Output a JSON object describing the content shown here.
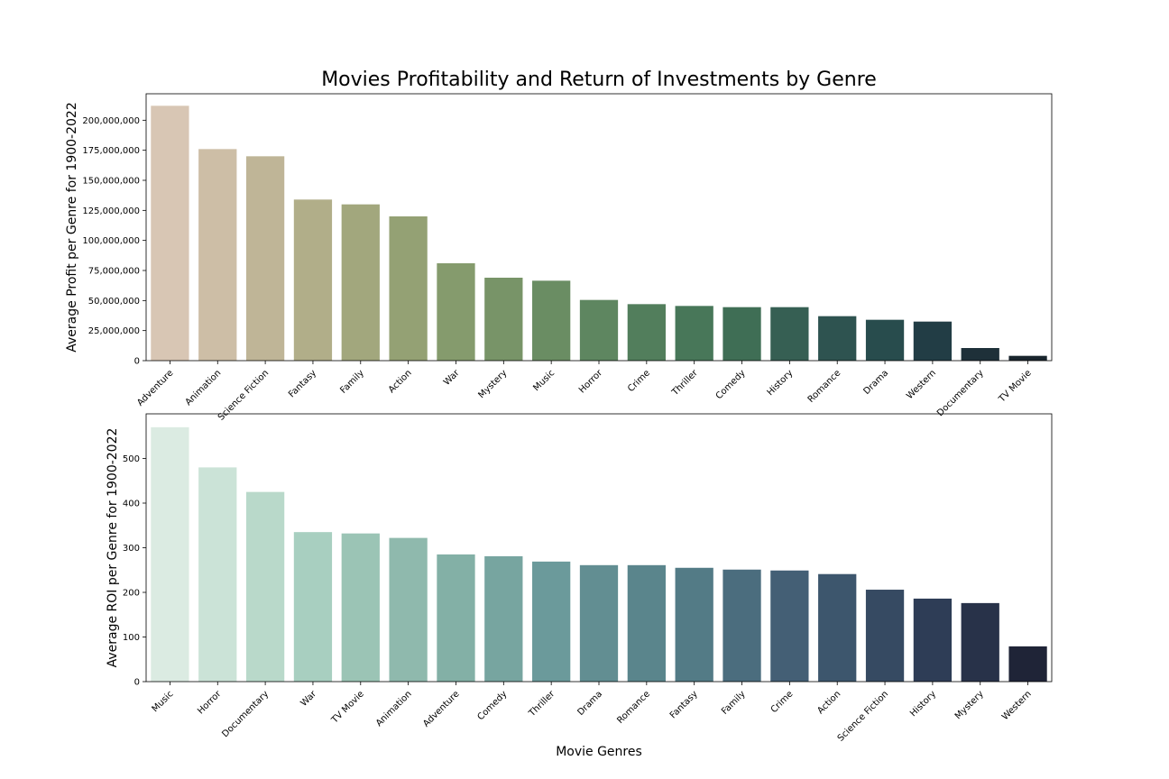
{
  "title": "Movies Profitability and Return of Investments by Genre",
  "chart_data": [
    {
      "type": "bar",
      "title": "Movies Profitability and Return of Investments by Genre",
      "xlabel": "",
      "ylabel": "Average Profit per Genre for 1900-2022",
      "ylim": [
        0,
        222000000
      ],
      "yticks": [
        0,
        25000000,
        50000000,
        75000000,
        100000000,
        125000000,
        150000000,
        175000000,
        200000000
      ],
      "ytick_labels": [
        "0",
        "25,000,000",
        "50,000,000",
        "75,000,000",
        "100,000,000",
        "125,000,000",
        "150,000,000",
        "175,000,000",
        "200,000,000"
      ],
      "categories": [
        "Adventure",
        "Animation",
        "Science Fiction",
        "Fantasy",
        "Family",
        "Action",
        "War",
        "Mystery",
        "Music",
        "Horror",
        "Crime",
        "Thriller",
        "Comedy",
        "History",
        "Romance",
        "Drama",
        "Western",
        "Documentary",
        "TV Movie"
      ],
      "values": [
        212000000,
        176000000,
        170000000,
        134000000,
        130000000,
        120000000,
        81000000,
        69000000,
        66500000,
        50500000,
        47000000,
        45500000,
        44500000,
        44500000,
        37000000,
        34000000,
        32500000,
        10500000,
        4000000
      ],
      "colors": [
        "#d8c6b4",
        "#cdbea6",
        "#bfb597",
        "#b1ae89",
        "#a2a77d",
        "#94a174",
        "#859b6d",
        "#789468",
        "#6a8d63",
        "#5e8660",
        "#527e5c",
        "#487759",
        "#3f6e55",
        "#365f53",
        "#2e5350",
        "#284c4d",
        "#223d45",
        "#1e3039",
        "#19252d"
      ],
      "grid": false
    },
    {
      "type": "bar",
      "title": "",
      "xlabel": "Movie Genres",
      "ylabel": "Average ROI per Genre for 1900-2022",
      "ylim": [
        0,
        600
      ],
      "yticks": [
        0,
        100,
        200,
        300,
        400,
        500
      ],
      "ytick_labels": [
        "0",
        "100",
        "200",
        "300",
        "400",
        "500"
      ],
      "categories": [
        "Music",
        "Horror",
        "Documentary",
        "War",
        "TV Movie",
        "Animation",
        "Adventure",
        "Comedy",
        "Thriller",
        "Drama",
        "Romance",
        "Fantasy",
        "Family",
        "Crime",
        "Action",
        "Science Fiction",
        "History",
        "Mystery",
        "Western"
      ],
      "values": [
        570,
        480,
        425,
        335,
        332,
        322,
        285,
        281,
        269,
        261,
        261,
        255,
        251,
        249,
        241,
        206,
        186,
        176,
        79
      ],
      "colors": [
        "#dbebe2",
        "#cbe3d7",
        "#b9d9ca",
        "#a8cfc0",
        "#9bc4b5",
        "#8fb9ad",
        "#83b0a6",
        "#77a5a0",
        "#6b9a9b",
        "#628e92",
        "#5a858c",
        "#537b86",
        "#4b6d7e",
        "#445f75",
        "#3d566d",
        "#364a62",
        "#2e3d56",
        "#283249",
        "#1f2437"
      ],
      "grid": false
    }
  ]
}
